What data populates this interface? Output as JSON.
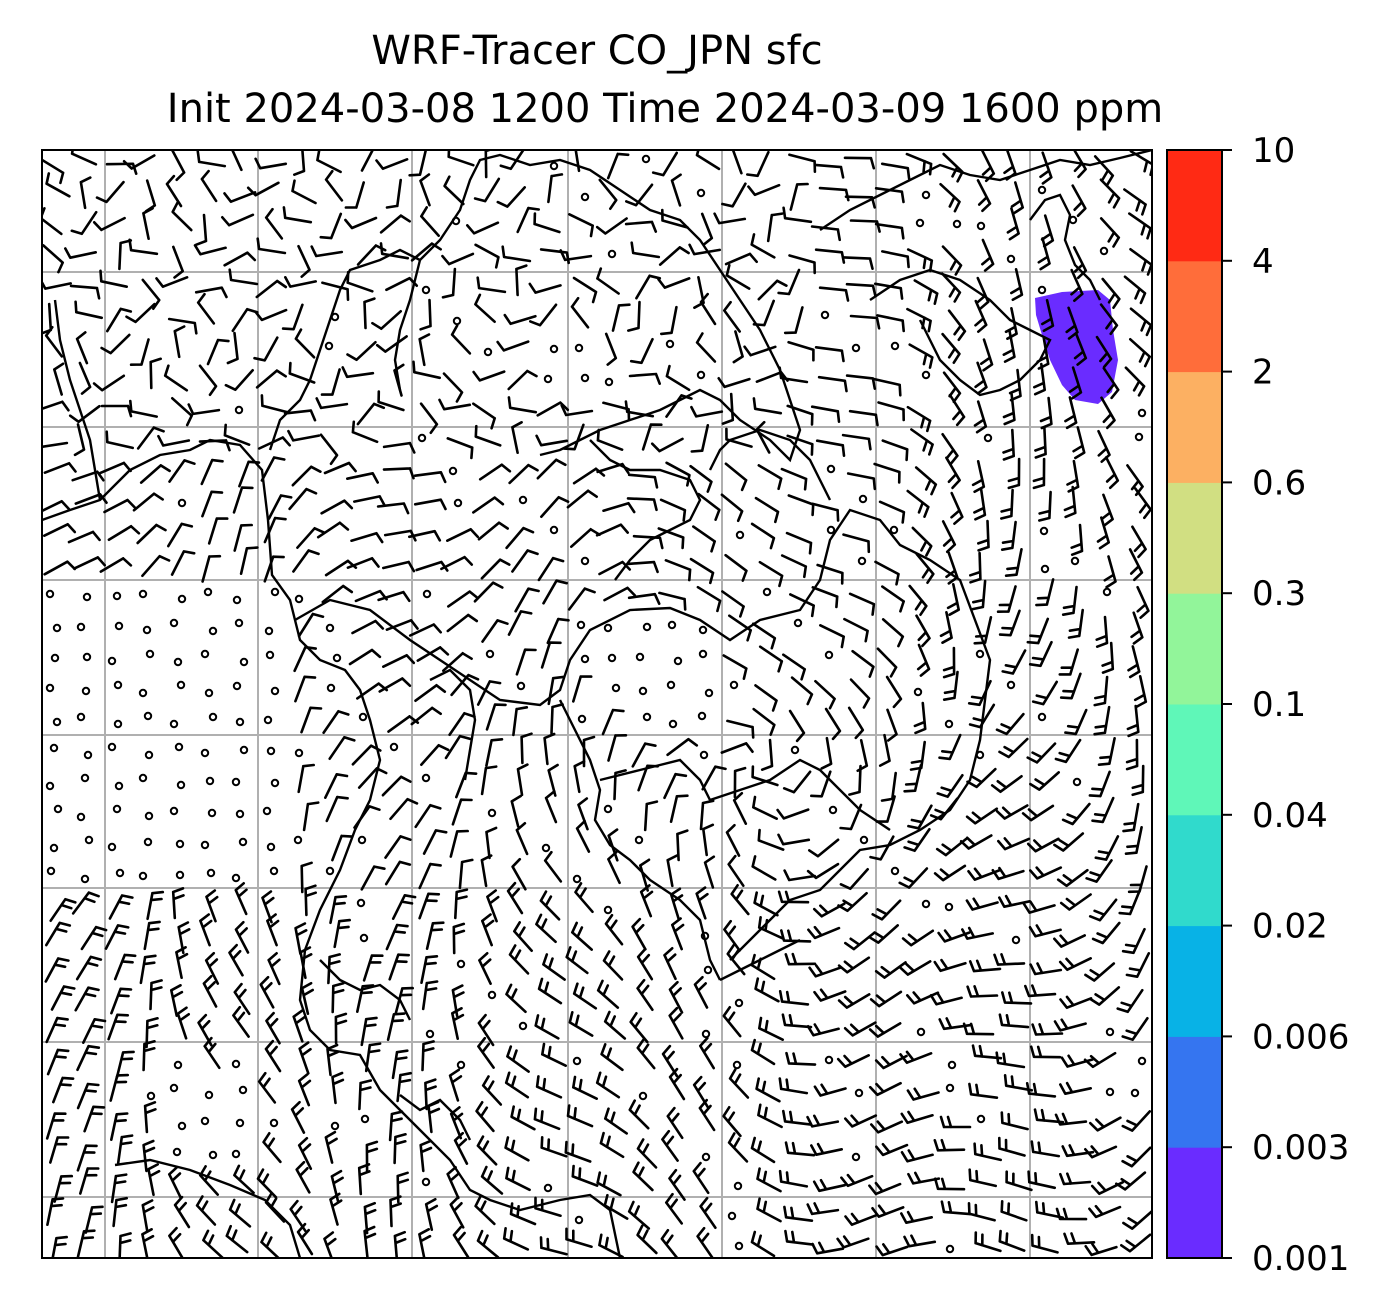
{
  "title": {
    "line1": "WRF-Tracer CO_JPN sfc",
    "line2": "Init 2024-03-08 1200 Time 2024-03-09 1600 ppm"
  },
  "colorbar": {
    "levels": [
      "0.001",
      "0.003",
      "0.006",
      "0.02",
      "0.04",
      "0.1",
      "0.3",
      "0.6",
      "2",
      "4",
      "10"
    ],
    "colors": [
      "#6a2cff",
      "#3575f0",
      "#08b2e6",
      "#30dacc",
      "#5ff7b8",
      "#92f59a",
      "#d1df82",
      "#fcb062",
      "#ff6d3a",
      "#ff2a14"
    ]
  },
  "map": {
    "gridlines": true,
    "tracer_fill_color": "#6a2cff",
    "wind_barbs": "surface wind barbs"
  }
}
